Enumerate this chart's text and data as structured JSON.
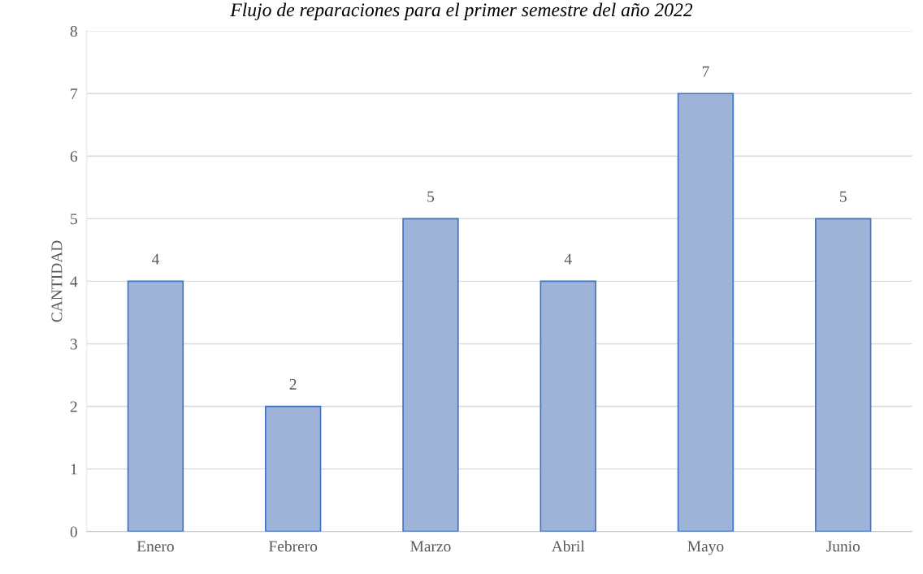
{
  "chart_data": {
    "type": "bar",
    "title": "Flujo de reparaciones para el primer semestre del año 2022",
    "ylabel": "CANTIDAD",
    "categories": [
      "Enero",
      "Febrero",
      "Marzo",
      "Abril",
      "Mayo",
      "Junio"
    ],
    "values": [
      4,
      2,
      5,
      4,
      7,
      5
    ],
    "color": "#9db3d8",
    "ylim": [
      0,
      8
    ],
    "yticks": [
      0,
      1,
      2,
      3,
      4,
      5,
      6,
      7,
      8
    ],
    "grid": "y",
    "data_labels": true
  }
}
